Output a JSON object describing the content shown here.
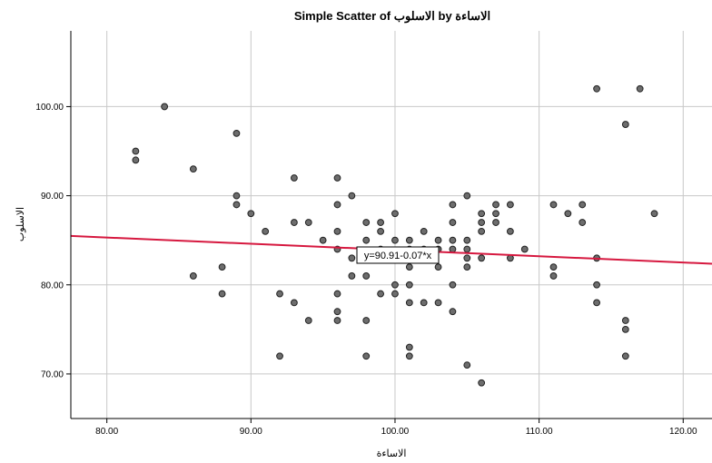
{
  "chart_data": {
    "type": "scatter",
    "title": "Simple Scatter of الاسلوب by الاساءة",
    "xlabel": "الاساءة",
    "ylabel": "الاسلوب",
    "xlim": [
      77.5,
      122.0
    ],
    "ylim": [
      65.0,
      108.5
    ],
    "x_ticks": [
      "80.00",
      "90.00",
      "100.00",
      "110.00",
      "120.00"
    ],
    "y_ticks": [
      "70.00",
      "80.00",
      "90.00",
      "100.00"
    ],
    "grid": true,
    "fit_line": {
      "equation": "y=90.91-0.07*x",
      "intercept": 90.91,
      "slope": -0.07,
      "color": "#d6183f"
    },
    "point_color": "#6d6d6d",
    "points": [
      [
        82,
        95
      ],
      [
        82,
        94
      ],
      [
        84,
        100
      ],
      [
        86,
        93
      ],
      [
        86,
        81
      ],
      [
        88,
        82
      ],
      [
        88,
        79
      ],
      [
        89,
        97
      ],
      [
        89,
        90
      ],
      [
        89,
        89
      ],
      [
        90,
        88
      ],
      [
        91,
        86
      ],
      [
        92,
        79
      ],
      [
        92,
        72
      ],
      [
        93,
        92
      ],
      [
        93,
        87
      ],
      [
        93,
        78
      ],
      [
        94,
        87
      ],
      [
        94,
        76
      ],
      [
        95,
        85
      ],
      [
        96,
        92
      ],
      [
        96,
        89
      ],
      [
        96,
        86
      ],
      [
        96,
        84
      ],
      [
        96,
        79
      ],
      [
        96,
        77
      ],
      [
        96,
        76
      ],
      [
        97,
        90
      ],
      [
        97,
        83
      ],
      [
        97,
        81
      ],
      [
        98,
        87
      ],
      [
        98,
        85
      ],
      [
        98,
        81
      ],
      [
        98,
        76
      ],
      [
        98,
        72
      ],
      [
        99,
        87
      ],
      [
        99,
        86
      ],
      [
        99,
        84
      ],
      [
        99,
        79
      ],
      [
        100,
        88
      ],
      [
        100,
        85
      ],
      [
        100,
        83
      ],
      [
        100,
        80
      ],
      [
        100,
        79
      ],
      [
        101,
        85
      ],
      [
        101,
        84
      ],
      [
        101,
        82
      ],
      [
        101,
        80
      ],
      [
        101,
        78
      ],
      [
        101,
        73
      ],
      [
        101,
        72
      ],
      [
        102,
        86
      ],
      [
        102,
        84
      ],
      [
        102,
        78
      ],
      [
        103,
        85
      ],
      [
        103,
        84
      ],
      [
        103,
        82
      ],
      [
        103,
        78
      ],
      [
        104,
        89
      ],
      [
        104,
        87
      ],
      [
        104,
        85
      ],
      [
        104,
        84
      ],
      [
        104,
        80
      ],
      [
        104,
        77
      ],
      [
        105,
        90
      ],
      [
        105,
        85
      ],
      [
        105,
        84
      ],
      [
        105,
        83
      ],
      [
        105,
        82
      ],
      [
        105,
        71
      ],
      [
        106,
        88
      ],
      [
        106,
        87
      ],
      [
        106,
        86
      ],
      [
        106,
        83
      ],
      [
        106,
        69
      ],
      [
        107,
        89
      ],
      [
        107,
        88
      ],
      [
        107,
        87
      ],
      [
        108,
        89
      ],
      [
        108,
        86
      ],
      [
        108,
        83
      ],
      [
        109,
        84
      ],
      [
        111,
        89
      ],
      [
        111,
        82
      ],
      [
        111,
        81
      ],
      [
        112,
        88
      ],
      [
        113,
        89
      ],
      [
        113,
        87
      ],
      [
        114,
        102
      ],
      [
        114,
        83
      ],
      [
        114,
        80
      ],
      [
        114,
        78
      ],
      [
        116,
        98
      ],
      [
        116,
        76
      ],
      [
        116,
        75
      ],
      [
        116,
        72
      ],
      [
        117,
        102
      ],
      [
        118,
        88
      ]
    ]
  }
}
